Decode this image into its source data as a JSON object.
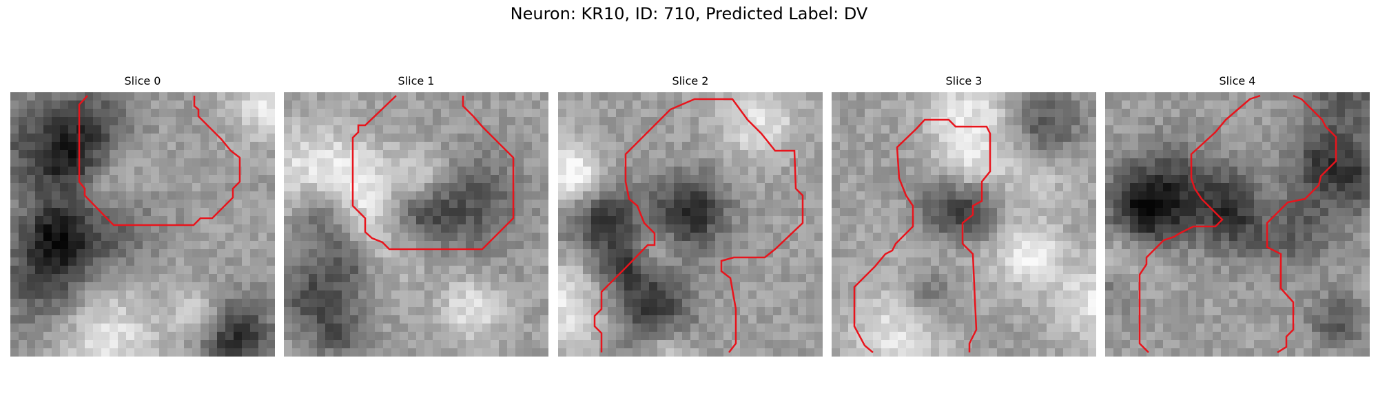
{
  "figure": {
    "title": "Neuron: KR10, ID: 710, Predicted Label: DV"
  },
  "overlay_color": "#e8141c",
  "slices": [
    {
      "label": "Slice 0",
      "seed": 11,
      "dark_regions": [
        "mid-left",
        "bottom-right"
      ],
      "outline": "closed"
    },
    {
      "label": "Slice 1",
      "seed": 23,
      "dark_regions": [
        "center",
        "left"
      ],
      "outline": "closed"
    },
    {
      "label": "Slice 2",
      "seed": 37,
      "dark_regions": [
        "left",
        "center"
      ],
      "outline": "two-paths"
    },
    {
      "label": "Slice 3",
      "seed": 51,
      "dark_regions": [
        "top-right",
        "center"
      ],
      "outline": "two-paths"
    },
    {
      "label": "Slice 4",
      "seed": 67,
      "dark_regions": [
        "left",
        "center"
      ],
      "outline": "two-paths"
    }
  ]
}
